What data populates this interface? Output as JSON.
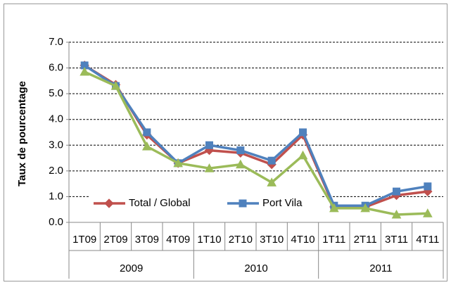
{
  "chart_data": {
    "type": "line",
    "y_label": "Taux de pourcentage",
    "categories": [
      "1T09",
      "2T09",
      "3T09",
      "4T09",
      "1T10",
      "2T10",
      "3T10",
      "4T10",
      "1T11",
      "2T11",
      "3T11",
      "4T11"
    ],
    "groups": [
      "2009",
      "2010",
      "2011"
    ],
    "series": [
      {
        "name": "Total / Global",
        "color": "#c0504d",
        "marker": "diamond",
        "values": [
          6.1,
          5.35,
          3.4,
          2.3,
          2.8,
          2.7,
          2.25,
          3.4,
          0.6,
          0.6,
          1.05,
          1.2
        ]
      },
      {
        "name": "Port Vila",
        "color": "#4f81bd",
        "marker": "square",
        "values": [
          6.1,
          5.3,
          3.5,
          2.3,
          3.0,
          2.8,
          2.4,
          3.5,
          0.65,
          0.65,
          1.2,
          1.4
        ]
      },
      {
        "color": "#9bbb59",
        "marker": "triangle",
        "values": [
          5.85,
          5.3,
          2.95,
          2.3,
          2.1,
          2.25,
          1.55,
          2.6,
          0.55,
          0.55,
          0.3,
          0.35
        ]
      }
    ],
    "ylim": [
      0,
      7
    ],
    "yticks": [
      {
        "value": 0,
        "label": "0.0"
      },
      {
        "value": 1,
        "label": "1.0"
      },
      {
        "value": 2,
        "label": "2.0"
      },
      {
        "value": 3,
        "label": "3.0"
      },
      {
        "value": 4,
        "label": "4.0"
      },
      {
        "value": 5,
        "label": "5.0"
      },
      {
        "value": 6,
        "label": "6.0"
      },
      {
        "value": 7,
        "label": "7.0"
      }
    ],
    "grid": true,
    "legend": "bottom"
  }
}
